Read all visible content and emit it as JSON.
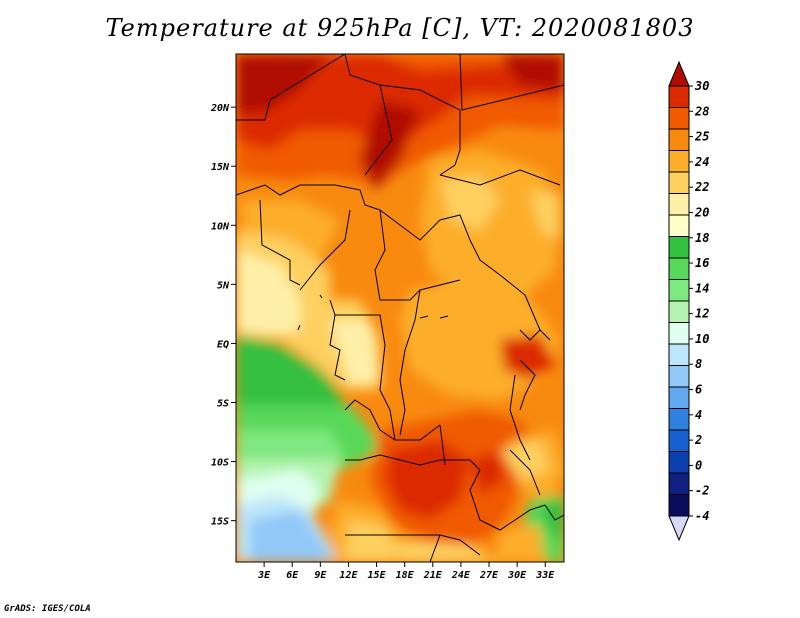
{
  "title": "Temperature at 925hPa [C], VT: 2020081803",
  "footer": "GrADS: IGES/COLA",
  "map": {
    "lon_range": [
      0,
      35
    ],
    "lat_range": [
      -18.5,
      24.5
    ],
    "lon_ticks": [
      "3E",
      "6E",
      "9E",
      "12E",
      "15E",
      "18E",
      "21E",
      "24E",
      "27E",
      "30E",
      "33E"
    ],
    "lat_ticks": [
      "20N",
      "15N",
      "10N",
      "5N",
      "EQ",
      "5S",
      "10S",
      "15S"
    ],
    "variable": "Temperature at 925hPa",
    "units": "C"
  },
  "colorbar": {
    "labels": [
      "30",
      "28",
      "25",
      "24",
      "22",
      "20",
      "18",
      "16",
      "14",
      "12",
      "10",
      "8",
      "6",
      "4",
      "2",
      "0",
      "-2",
      "-4"
    ],
    "colors": [
      "#b00c00",
      "#dc2a00",
      "#f05a00",
      "#f88a10",
      "#fcae2a",
      "#fdd060",
      "#fef0a8",
      "#ffffc8",
      "#34c040",
      "#58d858",
      "#80e880",
      "#b4f4b0",
      "#e0fff0",
      "#bee6fa",
      "#90c8f8",
      "#60a8f0",
      "#3080e0",
      "#1860d0",
      "#0c40b0",
      "#102080",
      "#0c0c5c",
      "#d8d8f8"
    ]
  }
}
